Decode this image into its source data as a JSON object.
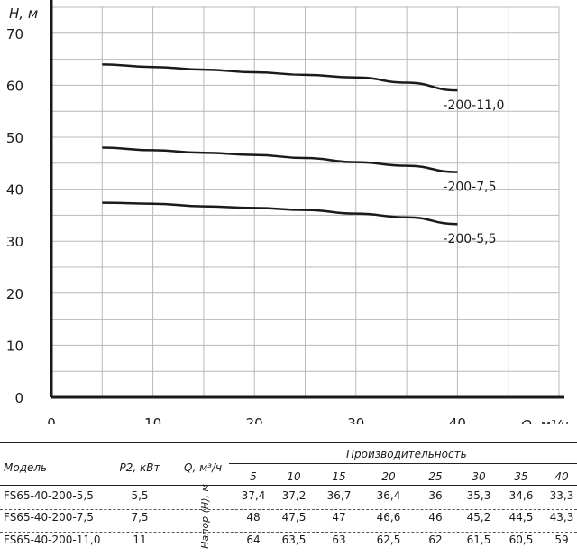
{
  "chart_data": {
    "type": "line",
    "ylabel": "H, м",
    "xlabel": "Q, м³/ч",
    "xlim": [
      0,
      50
    ],
    "ylim": [
      0,
      75
    ],
    "xticks": [
      0,
      10,
      20,
      30,
      40
    ],
    "yticks": [
      0,
      10,
      20,
      30,
      40,
      50,
      60,
      70
    ],
    "grid": true,
    "x": [
      5,
      10,
      15,
      20,
      25,
      30,
      35,
      40
    ],
    "series": [
      {
        "name": "-200-11,0",
        "values": [
          64,
          63.5,
          63,
          62.5,
          62,
          61.5,
          60.5,
          59
        ]
      },
      {
        "name": "-200-7,5",
        "values": [
          48,
          47.5,
          47,
          46.6,
          46,
          45.2,
          44.5,
          43.3
        ]
      },
      {
        "name": "-200-5,5",
        "values": [
          37.4,
          37.2,
          36.7,
          36.4,
          36,
          35.3,
          34.6,
          33.3
        ]
      }
    ]
  },
  "table": {
    "header_model": "Модель",
    "header_power": "P2, кВт",
    "header_flow": "Q, м³/ч",
    "header_performance": "Производительность",
    "header_head": "Напор (Н), м",
    "flows": [
      "5",
      "10",
      "15",
      "20",
      "25",
      "30",
      "35",
      "40"
    ],
    "rows": [
      {
        "model": "FS65-40-200-5,5",
        "power": "5,5",
        "values": [
          "37,4",
          "37,2",
          "36,7",
          "36,4",
          "36",
          "35,3",
          "34,6",
          "33,3"
        ]
      },
      {
        "model": "FS65-40-200-7,5",
        "power": "7,5",
        "values": [
          "48",
          "47,5",
          "47",
          "46,6",
          "46",
          "45,2",
          "44,5",
          "43,3"
        ]
      },
      {
        "model": "FS65-40-200-11,0",
        "power": "11",
        "values": [
          "64",
          "63,5",
          "63",
          "62,5",
          "62",
          "61,5",
          "60,5",
          "59"
        ]
      }
    ]
  }
}
